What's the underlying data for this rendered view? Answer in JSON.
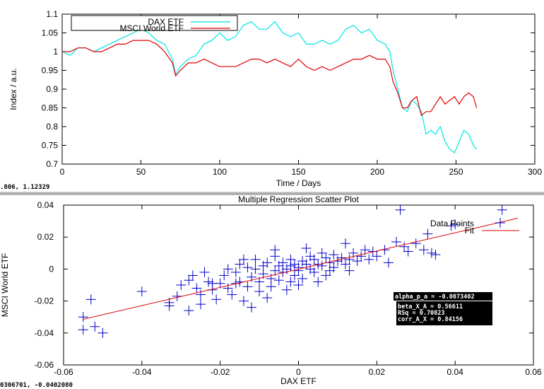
{
  "top_window": {
    "status_text": ".806, 1.12329"
  },
  "bottom_window": {
    "status_text": "0306701, -0.0402080",
    "stats_box": {
      "line1": "alpha_p_a = -0.0073402",
      "line2": "beta_X_A =  0.56611",
      "line3": "RSq =  0.70823",
      "line4": "corr_A_X =  0.84156"
    }
  },
  "colors": {
    "dax": "#00e5e5",
    "msci": "#e00000",
    "points": "#0000cc",
    "fit": "#e00000"
  },
  "chart_data": [
    {
      "type": "line",
      "title": "",
      "xlabel": "Time / Days",
      "ylabel": "Index / a.u.",
      "xlim": [
        0,
        300
      ],
      "ylim": [
        0.7,
        1.1
      ],
      "xticks": [
        "0",
        "50",
        "100",
        "150",
        "200",
        "250",
        "300"
      ],
      "yticks": [
        "0.7",
        "0.75",
        "0.8",
        "0.85",
        "0.9",
        "0.95",
        "1",
        "1.05",
        "1.1"
      ],
      "legend_position": "top-left",
      "grid": false,
      "series": [
        {
          "name": "DAX ETF",
          "x": [
            0,
            5,
            10,
            15,
            20,
            25,
            30,
            35,
            40,
            45,
            50,
            55,
            60,
            65,
            70,
            72,
            75,
            80,
            85,
            90,
            95,
            100,
            105,
            110,
            115,
            120,
            125,
            130,
            135,
            140,
            145,
            150,
            155,
            160,
            165,
            170,
            175,
            180,
            185,
            190,
            195,
            200,
            205,
            208,
            210,
            213,
            216,
            219,
            222,
            225,
            228,
            231,
            234,
            237,
            240,
            243,
            246,
            249,
            252,
            255,
            258,
            261,
            263
          ],
          "y": [
            1.0,
            0.99,
            1.01,
            1.01,
            1.0,
            1.01,
            1.02,
            1.03,
            1.04,
            1.05,
            1.06,
            1.05,
            1.03,
            1.02,
            0.98,
            0.94,
            0.96,
            0.98,
            0.99,
            1.02,
            1.03,
            1.05,
            1.03,
            1.04,
            1.07,
            1.08,
            1.06,
            1.06,
            1.08,
            1.05,
            1.04,
            1.05,
            1.02,
            1.02,
            1.03,
            1.02,
            1.03,
            1.06,
            1.07,
            1.05,
            1.06,
            1.03,
            1.02,
            1.0,
            0.95,
            0.9,
            0.85,
            0.84,
            0.87,
            0.86,
            0.84,
            0.78,
            0.79,
            0.78,
            0.8,
            0.76,
            0.74,
            0.73,
            0.76,
            0.79,
            0.78,
            0.75,
            0.74
          ]
        },
        {
          "name": "MSCI World ETF",
          "x": [
            0,
            5,
            10,
            15,
            20,
            25,
            30,
            35,
            40,
            45,
            50,
            55,
            60,
            65,
            70,
            72,
            75,
            80,
            85,
            90,
            95,
            100,
            105,
            110,
            115,
            120,
            125,
            130,
            135,
            140,
            145,
            150,
            155,
            160,
            165,
            170,
            175,
            180,
            185,
            190,
            195,
            200,
            205,
            208,
            210,
            213,
            216,
            219,
            222,
            225,
            228,
            231,
            234,
            237,
            240,
            243,
            246,
            249,
            252,
            255,
            258,
            261,
            263
          ],
          "y": [
            1.0,
            1.0,
            1.01,
            1.01,
            1.0,
            1.0,
            1.01,
            1.02,
            1.02,
            1.03,
            1.03,
            1.03,
            1.02,
            1.0,
            0.97,
            0.935,
            0.95,
            0.97,
            0.97,
            0.98,
            0.97,
            0.96,
            0.96,
            0.96,
            0.97,
            0.98,
            0.98,
            0.97,
            0.98,
            0.97,
            0.96,
            0.98,
            0.96,
            0.95,
            0.96,
            0.95,
            0.96,
            0.97,
            0.98,
            0.98,
            0.99,
            0.98,
            0.98,
            0.96,
            0.92,
            0.89,
            0.85,
            0.85,
            0.87,
            0.88,
            0.83,
            0.84,
            0.84,
            0.86,
            0.88,
            0.86,
            0.87,
            0.88,
            0.86,
            0.88,
            0.89,
            0.88,
            0.85
          ]
        }
      ]
    },
    {
      "type": "scatter",
      "title": "Multiple Regression Scatter Plot",
      "xlabel": "DAX ETF",
      "ylabel": "MSCI World ETF",
      "xlim": [
        -0.06,
        0.06
      ],
      "ylim": [
        -0.06,
        0.04
      ],
      "xticks": [
        "-0.06",
        "-0.04",
        "-0.02",
        "0",
        "0.02",
        "0.04",
        "0.06"
      ],
      "yticks": [
        "-0.06",
        "-0.04",
        "-0.02",
        "0",
        "0.02",
        "0.04"
      ],
      "legend_position": "top-right",
      "grid": false,
      "series": [
        {
          "name": "Data Points",
          "points": [
            [
              -0.055,
              -0.038
            ],
            [
              -0.055,
              -0.03
            ],
            [
              -0.053,
              -0.019
            ],
            [
              -0.052,
              -0.036
            ],
            [
              -0.05,
              -0.04
            ],
            [
              -0.04,
              -0.014
            ],
            [
              -0.033,
              -0.021
            ],
            [
              -0.033,
              -0.023
            ],
            [
              -0.03,
              -0.01
            ],
            [
              -0.028,
              -0.007
            ],
            [
              -0.028,
              -0.026
            ],
            [
              -0.027,
              -0.004
            ],
            [
              -0.025,
              -0.016
            ],
            [
              -0.025,
              -0.022
            ],
            [
              -0.024,
              -0.002
            ],
            [
              -0.022,
              -0.009
            ],
            [
              -0.022,
              -0.013
            ],
            [
              -0.021,
              -0.019
            ],
            [
              -0.02,
              -0.009
            ],
            [
              -0.019,
              -0.004
            ],
            [
              -0.018,
              -0.012
            ],
            [
              -0.017,
              -0.016
            ],
            [
              -0.016,
              -0.002
            ],
            [
              -0.016,
              -0.009
            ],
            [
              -0.015,
              0.003
            ],
            [
              -0.015,
              -0.008
            ],
            [
              -0.014,
              -0.02
            ],
            [
              -0.013,
              0.001
            ],
            [
              -0.013,
              -0.011
            ],
            [
              -0.012,
              -0.024
            ],
            [
              -0.012,
              -0.005
            ],
            [
              -0.011,
              0.006
            ],
            [
              -0.011,
              0.0
            ],
            [
              -0.01,
              -0.008
            ],
            [
              -0.01,
              -0.014
            ],
            [
              -0.009,
              0.002
            ],
            [
              -0.009,
              -0.003
            ],
            [
              -0.008,
              -0.018
            ],
            [
              -0.008,
              0.004
            ],
            [
              -0.007,
              -0.006
            ],
            [
              -0.007,
              -0.011
            ],
            [
              -0.006,
              0.008
            ],
            [
              -0.006,
              -0.001
            ],
            [
              -0.005,
              0.002
            ],
            [
              -0.005,
              -0.007
            ],
            [
              -0.004,
              0.004
            ],
            [
              -0.004,
              -0.002
            ],
            [
              -0.003,
              0.0
            ],
            [
              -0.003,
              -0.013
            ],
            [
              -0.002,
              0.006
            ],
            [
              -0.002,
              0.002
            ],
            [
              -0.001,
              -0.004
            ],
            [
              -0.001,
              0.003
            ],
            [
              0.0,
              0.001
            ],
            [
              0.0,
              -0.001
            ],
            [
              0.001,
              0.005
            ],
            [
              0.001,
              -0.006
            ],
            [
              0.002,
              0.003
            ],
            [
              0.002,
              0.013
            ],
            [
              0.003,
              0.0
            ],
            [
              0.003,
              0.008
            ],
            [
              0.004,
              -0.002
            ],
            [
              0.004,
              0.006
            ],
            [
              0.005,
              0.003
            ],
            [
              0.005,
              -0.008
            ],
            [
              0.006,
              0.002
            ],
            [
              0.007,
              0.007
            ],
            [
              0.007,
              -0.004
            ],
            [
              0.008,
              0.004
            ],
            [
              0.009,
              0.001
            ],
            [
              0.009,
              0.009
            ],
            [
              0.01,
              0.005
            ],
            [
              0.011,
              0.007
            ],
            [
              0.012,
              0.003
            ],
            [
              0.012,
              0.016
            ],
            [
              0.013,
              0.006
            ],
            [
              0.014,
              0.01
            ],
            [
              0.015,
              0.005
            ],
            [
              0.016,
              0.008
            ],
            [
              0.017,
              0.012
            ],
            [
              0.018,
              0.006
            ],
            [
              0.019,
              0.011
            ],
            [
              0.02,
              0.008
            ],
            [
              0.022,
              0.012
            ],
            [
              0.023,
              0.004
            ],
            [
              0.025,
              0.017
            ],
            [
              0.026,
              0.037
            ],
            [
              0.027,
              0.014
            ],
            [
              0.028,
              0.011
            ],
            [
              0.03,
              0.016
            ],
            [
              0.032,
              0.012
            ],
            [
              0.033,
              0.022
            ],
            [
              0.034,
              0.01
            ],
            [
              0.035,
              0.009
            ],
            [
              0.039,
              0.027
            ],
            [
              0.04,
              0.028
            ],
            [
              0.052,
              0.037
            ],
            [
              -0.018,
              0.0
            ],
            [
              -0.014,
              0.006
            ],
            [
              -0.002,
              -0.008
            ],
            [
              0.006,
              0.01
            ],
            [
              -0.026,
              -0.012
            ],
            [
              -0.031,
              -0.017
            ],
            [
              0.0,
              -0.01
            ],
            [
              0.008,
              -0.001
            ],
            [
              -0.006,
              0.012
            ],
            [
              0.013,
              -0.001
            ],
            [
              -0.023,
              -0.008
            ]
          ]
        },
        {
          "name": "Fit",
          "x": [
            -0.055,
            0.056
          ],
          "y": [
            -0.0314,
            0.0318
          ]
        }
      ]
    }
  ]
}
